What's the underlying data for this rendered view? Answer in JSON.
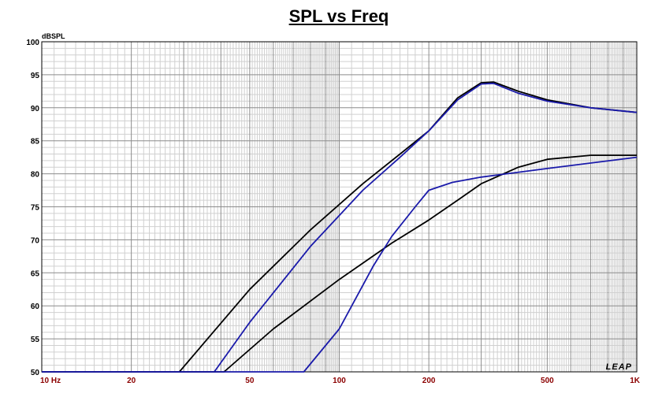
{
  "chart_data": {
    "type": "line",
    "title": "SPL vs Freq",
    "ylabel": "dBSPL",
    "xscale": "log",
    "xlim": [
      10,
      1000
    ],
    "ylim": [
      50,
      100
    ],
    "x_ticks": [
      {
        "value": 10,
        "label": "10  Hz"
      },
      {
        "value": 20,
        "label": "20"
      },
      {
        "value": 50,
        "label": "50"
      },
      {
        "value": 100,
        "label": "100"
      },
      {
        "value": 200,
        "label": "200"
      },
      {
        "value": 500,
        "label": "500"
      },
      {
        "value": 1000,
        "label": "1K"
      }
    ],
    "y_ticks": [
      50,
      55,
      60,
      65,
      70,
      75,
      80,
      85,
      90,
      95,
      100
    ],
    "grid": true,
    "logo": "LEAP",
    "series": [
      {
        "color": "#000000",
        "x": [
          10,
          29,
          50,
          80,
          120,
          160,
          200,
          250,
          300,
          330,
          400,
          500,
          700,
          1000
        ],
        "y": [
          50,
          50,
          62.5,
          71.5,
          78.5,
          83,
          86.5,
          91.5,
          93.8,
          93.9,
          92.5,
          91.2,
          90,
          89.3
        ]
      },
      {
        "color": "#1a1aaa",
        "x": [
          10,
          38,
          50,
          80,
          120,
          160,
          200,
          250,
          300,
          330,
          400,
          500,
          700,
          1000
        ],
        "y": [
          50,
          50,
          57.5,
          69,
          77.5,
          82.5,
          86.5,
          91.2,
          93.6,
          93.7,
          92.2,
          91,
          90,
          89.3
        ]
      },
      {
        "color": "#000000",
        "x": [
          10,
          41,
          60,
          100,
          150,
          200,
          250,
          300,
          400,
          500,
          700,
          1000
        ],
        "y": [
          50,
          50,
          56.5,
          64,
          69.5,
          73,
          76,
          78.5,
          81,
          82.2,
          82.8,
          82.8
        ]
      },
      {
        "color": "#1a1aaa",
        "x": [
          10,
          76,
          100,
          130,
          150,
          180,
          200,
          240,
          300,
          500,
          1000
        ],
        "y": [
          50,
          50,
          56.5,
          66,
          70.5,
          75,
          77.5,
          78.7,
          79.5,
          80.8,
          82.5
        ]
      }
    ]
  }
}
